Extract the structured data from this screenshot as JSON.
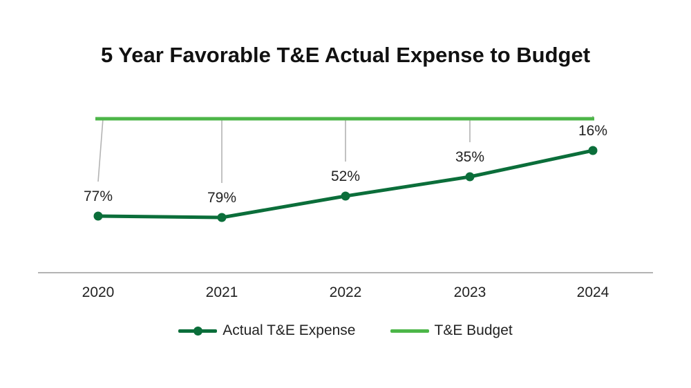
{
  "chart_data": {
    "type": "line",
    "title": "5 Year Favorable T&E Actual Expense to Budget",
    "categories": [
      "2020",
      "2021",
      "2022",
      "2023",
      "2024"
    ],
    "series": [
      {
        "name": "Actual T&E Expense",
        "values": [
          -141,
          -143,
          -112,
          -84,
          -46
        ],
        "data_labels": [
          "77%",
          "79%",
          "52%",
          "35%",
          "16%"
        ],
        "color": "#0b6e3a"
      },
      {
        "name": "T&E Budget",
        "values": [
          0,
          0,
          0,
          0,
          0
        ],
        "color": "#4cb648"
      }
    ],
    "ylim": [
      -226,
      10
    ],
    "legend_position": "bottom-center",
    "leader_line_color": "#b3b3b3",
    "axis_color": "#b3b3b3"
  }
}
